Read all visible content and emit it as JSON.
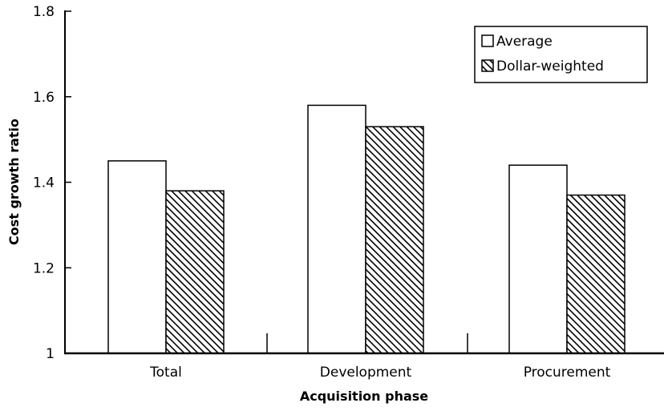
{
  "chart_data": {
    "type": "bar",
    "title": "",
    "xlabel": "Acquisition phase",
    "ylabel": "Cost growth ratio",
    "categories": [
      "Total",
      "Development",
      "Procurement"
    ],
    "series": [
      {
        "name": "Average",
        "values": [
          1.45,
          1.58,
          1.44
        ],
        "fill": "white"
      },
      {
        "name": "Dollar-weighted",
        "values": [
          1.38,
          1.53,
          1.37
        ],
        "fill": "hatched"
      }
    ],
    "ylim": [
      1.0,
      1.8
    ],
    "yticks": [
      1,
      1.2,
      1.4,
      1.6,
      1.8
    ],
    "ytick_labels": [
      "1",
      "1.2",
      "1.4",
      "1.6",
      "1.8"
    ],
    "grid": false,
    "legend_position": "top-right",
    "colors": {
      "axis": "#000000",
      "bar_fill": "#ffffff",
      "hatch": "#000000"
    }
  }
}
